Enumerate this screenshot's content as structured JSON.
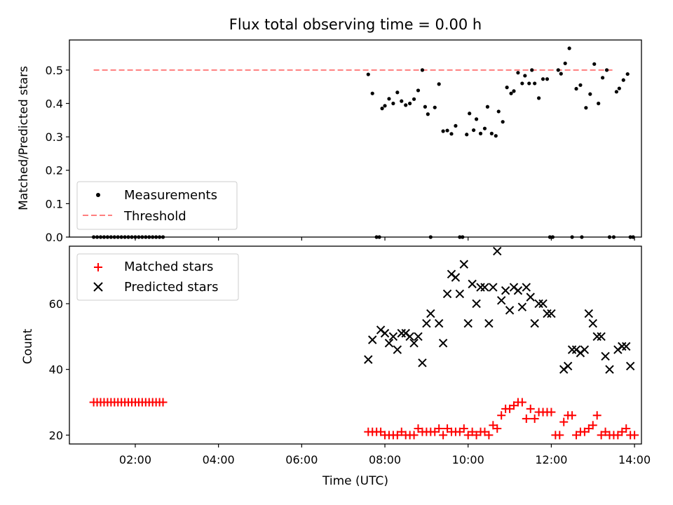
{
  "chart_data": [
    {
      "type": "scatter",
      "title": "Flux total observing time = 0.00 h",
      "xlabel": "",
      "ylabel": "Matched/Predicted stars",
      "xlim": [
        "00:25",
        "14:10"
      ],
      "ylim": [
        0,
        0.59
      ],
      "yticks": [
        "0.0",
        "0.1",
        "0.2",
        "0.3",
        "0.4",
        "0.5"
      ],
      "legend": {
        "placement": "lower-left",
        "entries": [
          "Measurements",
          "Threshold"
        ]
      },
      "threshold": {
        "name": "Threshold",
        "value": 0.5,
        "x_start": "01:00",
        "x_end": "13:30",
        "color": "#ff7f7f",
        "style": "dashed"
      },
      "series": [
        {
          "name": "Measurements",
          "color": "#000000",
          "marker": "dot",
          "points": [
            [
              "01:00",
              0
            ],
            [
              "01:05",
              0
            ],
            [
              "01:10",
              0
            ],
            [
              "01:15",
              0
            ],
            [
              "01:20",
              0
            ],
            [
              "01:25",
              0
            ],
            [
              "01:30",
              0
            ],
            [
              "01:35",
              0
            ],
            [
              "01:40",
              0
            ],
            [
              "01:45",
              0
            ],
            [
              "01:50",
              0
            ],
            [
              "01:55",
              0
            ],
            [
              "02:00",
              0
            ],
            [
              "02:05",
              0
            ],
            [
              "02:10",
              0
            ],
            [
              "02:15",
              0
            ],
            [
              "02:20",
              0
            ],
            [
              "02:25",
              0
            ],
            [
              "02:30",
              0
            ],
            [
              "02:35",
              0
            ],
            [
              "02:40",
              0
            ],
            [
              "07:36",
              0.487
            ],
            [
              "07:42",
              0.43
            ],
            [
              "07:48",
              0
            ],
            [
              "07:52",
              0
            ],
            [
              "07:56",
              0.385
            ],
            [
              "08:00",
              0.393
            ],
            [
              "08:06",
              0.414
            ],
            [
              "08:12",
              0.4
            ],
            [
              "08:18",
              0.433
            ],
            [
              "08:24",
              0.407
            ],
            [
              "08:30",
              0.395
            ],
            [
              "08:36",
              0.4
            ],
            [
              "08:42",
              0.413
            ],
            [
              "08:48",
              0.439
            ],
            [
              "08:54",
              0.5
            ],
            [
              "08:58",
              0.39
            ],
            [
              "09:02",
              0.368
            ],
            [
              "09:06",
              0
            ],
            [
              "09:12",
              0.388
            ],
            [
              "09:18",
              0.458
            ],
            [
              "09:24",
              0.317
            ],
            [
              "09:30",
              0.319
            ],
            [
              "09:36",
              0.309
            ],
            [
              "09:42",
              0.333
            ],
            [
              "09:48",
              0
            ],
            [
              "09:52",
              0
            ],
            [
              "09:58",
              0.307
            ],
            [
              "10:02",
              0.37
            ],
            [
              "10:08",
              0.32
            ],
            [
              "10:12",
              0.353
            ],
            [
              "10:18",
              0.31
            ],
            [
              "10:24",
              0.325
            ],
            [
              "10:28",
              0.39
            ],
            [
              "10:34",
              0.31
            ],
            [
              "10:40",
              0.303
            ],
            [
              "10:44",
              0.376
            ],
            [
              "10:50",
              0.345
            ],
            [
              "10:56",
              0.448
            ],
            [
              "11:02",
              0.43
            ],
            [
              "11:06",
              0.437
            ],
            [
              "11:12",
              0.492
            ],
            [
              "11:18",
              0.46
            ],
            [
              "11:22",
              0.483
            ],
            [
              "11:28",
              0.46
            ],
            [
              "11:32",
              0.5
            ],
            [
              "11:36",
              0.46
            ],
            [
              "11:42",
              0.416
            ],
            [
              "11:48",
              0.473
            ],
            [
              "11:54",
              0.473
            ],
            [
              "11:58",
              0
            ],
            [
              "12:02",
              0
            ],
            [
              "12:10",
              0.5
            ],
            [
              "12:14",
              0.489
            ],
            [
              "12:20",
              0.52
            ],
            [
              "12:26",
              0.565
            ],
            [
              "12:30",
              0
            ],
            [
              "12:36",
              0.444
            ],
            [
              "12:42",
              0.455
            ],
            [
              "12:44",
              0
            ],
            [
              "12:50",
              0.387
            ],
            [
              "12:56",
              0.428
            ],
            [
              "13:02",
              0.518
            ],
            [
              "13:08",
              0.4
            ],
            [
              "13:14",
              0.477
            ],
            [
              "13:20",
              0.5
            ],
            [
              "13:24",
              0
            ],
            [
              "13:30",
              0
            ],
            [
              "13:34",
              0.435
            ],
            [
              "13:38",
              0.445
            ],
            [
              "13:44",
              0.47
            ],
            [
              "13:50",
              0.488
            ],
            [
              "13:54",
              0
            ],
            [
              "13:58",
              0
            ]
          ]
        }
      ]
    },
    {
      "type": "scatter",
      "title": "",
      "xlabel": "Time (UTC)",
      "ylabel": "Count",
      "xlim": [
        "00:25",
        "14:10"
      ],
      "ylim": [
        17.3,
        77.5
      ],
      "xticks": [
        "02:00",
        "04:00",
        "06:00",
        "08:00",
        "10:00",
        "12:00",
        "14:00"
      ],
      "yticks": [
        "20",
        "40",
        "60"
      ],
      "legend": {
        "placement": "upper-left",
        "entries": [
          "Matched stars",
          "Predicted stars"
        ]
      },
      "series": [
        {
          "name": "Matched stars",
          "color": "#ff0000",
          "marker": "plus",
          "points": [
            [
              "01:00",
              30
            ],
            [
              "01:05",
              30
            ],
            [
              "01:10",
              30
            ],
            [
              "01:15",
              30
            ],
            [
              "01:20",
              30
            ],
            [
              "01:25",
              30
            ],
            [
              "01:30",
              30
            ],
            [
              "01:35",
              30
            ],
            [
              "01:40",
              30
            ],
            [
              "01:45",
              30
            ],
            [
              "01:50",
              30
            ],
            [
              "01:55",
              30
            ],
            [
              "02:00",
              30
            ],
            [
              "02:05",
              30
            ],
            [
              "02:10",
              30
            ],
            [
              "02:15",
              30
            ],
            [
              "02:20",
              30
            ],
            [
              "02:25",
              30
            ],
            [
              "02:30",
              30
            ],
            [
              "02:35",
              30
            ],
            [
              "02:40",
              30
            ],
            [
              "07:36",
              21
            ],
            [
              "07:42",
              21
            ],
            [
              "07:48",
              21
            ],
            [
              "07:54",
              21
            ],
            [
              "08:00",
              20
            ],
            [
              "08:06",
              20
            ],
            [
              "08:12",
              20
            ],
            [
              "08:18",
              20
            ],
            [
              "08:24",
              21
            ],
            [
              "08:30",
              20
            ],
            [
              "08:36",
              20
            ],
            [
              "08:42",
              20
            ],
            [
              "08:48",
              22
            ],
            [
              "08:54",
              21
            ],
            [
              "09:00",
              21
            ],
            [
              "09:06",
              21
            ],
            [
              "09:12",
              21
            ],
            [
              "09:18",
              22
            ],
            [
              "09:24",
              20
            ],
            [
              "09:30",
              22
            ],
            [
              "09:36",
              21
            ],
            [
              "09:42",
              21
            ],
            [
              "09:48",
              21
            ],
            [
              "09:54",
              22
            ],
            [
              "10:00",
              20
            ],
            [
              "10:06",
              21
            ],
            [
              "10:12",
              20
            ],
            [
              "10:18",
              21
            ],
            [
              "10:24",
              21
            ],
            [
              "10:30",
              20
            ],
            [
              "10:36",
              23
            ],
            [
              "10:42",
              22
            ],
            [
              "10:48",
              26
            ],
            [
              "10:54",
              28
            ],
            [
              "11:00",
              28
            ],
            [
              "11:06",
              29
            ],
            [
              "11:12",
              30
            ],
            [
              "11:18",
              30
            ],
            [
              "11:24",
              25
            ],
            [
              "11:30",
              28
            ],
            [
              "11:36",
              25
            ],
            [
              "11:42",
              27
            ],
            [
              "11:48",
              27
            ],
            [
              "11:54",
              27
            ],
            [
              "12:00",
              27
            ],
            [
              "12:06",
              20
            ],
            [
              "12:12",
              20
            ],
            [
              "12:18",
              24
            ],
            [
              "12:24",
              26
            ],
            [
              "12:30",
              26
            ],
            [
              "12:36",
              20
            ],
            [
              "12:42",
              21
            ],
            [
              "12:48",
              21
            ],
            [
              "12:54",
              22
            ],
            [
              "13:00",
              23
            ],
            [
              "13:06",
              26
            ],
            [
              "13:12",
              20
            ],
            [
              "13:18",
              21
            ],
            [
              "13:24",
              20
            ],
            [
              "13:30",
              20
            ],
            [
              "13:36",
              20
            ],
            [
              "13:42",
              21
            ],
            [
              "13:48",
              22
            ],
            [
              "13:54",
              20
            ],
            [
              "14:00",
              20
            ]
          ]
        },
        {
          "name": "Predicted stars",
          "color": "#000000",
          "marker": "x",
          "points": [
            [
              "07:36",
              43
            ],
            [
              "07:42",
              49
            ],
            [
              "07:54",
              52
            ],
            [
              "08:00",
              51
            ],
            [
              "08:06",
              48
            ],
            [
              "08:12",
              50
            ],
            [
              "08:18",
              46
            ],
            [
              "08:24",
              51
            ],
            [
              "08:30",
              51
            ],
            [
              "08:36",
              50
            ],
            [
              "08:42",
              48
            ],
            [
              "08:48",
              50
            ],
            [
              "08:54",
              42
            ],
            [
              "09:00",
              54
            ],
            [
              "09:06",
              57
            ],
            [
              "09:18",
              54
            ],
            [
              "09:24",
              48
            ],
            [
              "09:30",
              63
            ],
            [
              "09:36",
              69
            ],
            [
              "09:42",
              68
            ],
            [
              "09:48",
              63
            ],
            [
              "09:54",
              72
            ],
            [
              "10:00",
              54
            ],
            [
              "10:06",
              66
            ],
            [
              "10:12",
              60
            ],
            [
              "10:18",
              65
            ],
            [
              "10:24",
              65
            ],
            [
              "10:30",
              54
            ],
            [
              "10:36",
              65
            ],
            [
              "10:42",
              76
            ],
            [
              "10:48",
              61
            ],
            [
              "10:54",
              64
            ],
            [
              "11:00",
              58
            ],
            [
              "11:06",
              65
            ],
            [
              "11:12",
              64
            ],
            [
              "11:18",
              59
            ],
            [
              "11:24",
              65
            ],
            [
              "11:30",
              62
            ],
            [
              "11:36",
              54
            ],
            [
              "11:42",
              60
            ],
            [
              "11:48",
              60
            ],
            [
              "11:54",
              57
            ],
            [
              "12:00",
              57
            ],
            [
              "12:18",
              40
            ],
            [
              "12:24",
              41
            ],
            [
              "12:30",
              46
            ],
            [
              "12:36",
              46
            ],
            [
              "12:42",
              45
            ],
            [
              "12:48",
              46
            ],
            [
              "12:54",
              57
            ],
            [
              "13:00",
              54
            ],
            [
              "13:06",
              50
            ],
            [
              "13:12",
              50
            ],
            [
              "13:18",
              44
            ],
            [
              "13:24",
              40
            ],
            [
              "13:36",
              46
            ],
            [
              "13:42",
              47
            ],
            [
              "13:48",
              47
            ],
            [
              "13:54",
              41
            ]
          ]
        }
      ]
    }
  ]
}
